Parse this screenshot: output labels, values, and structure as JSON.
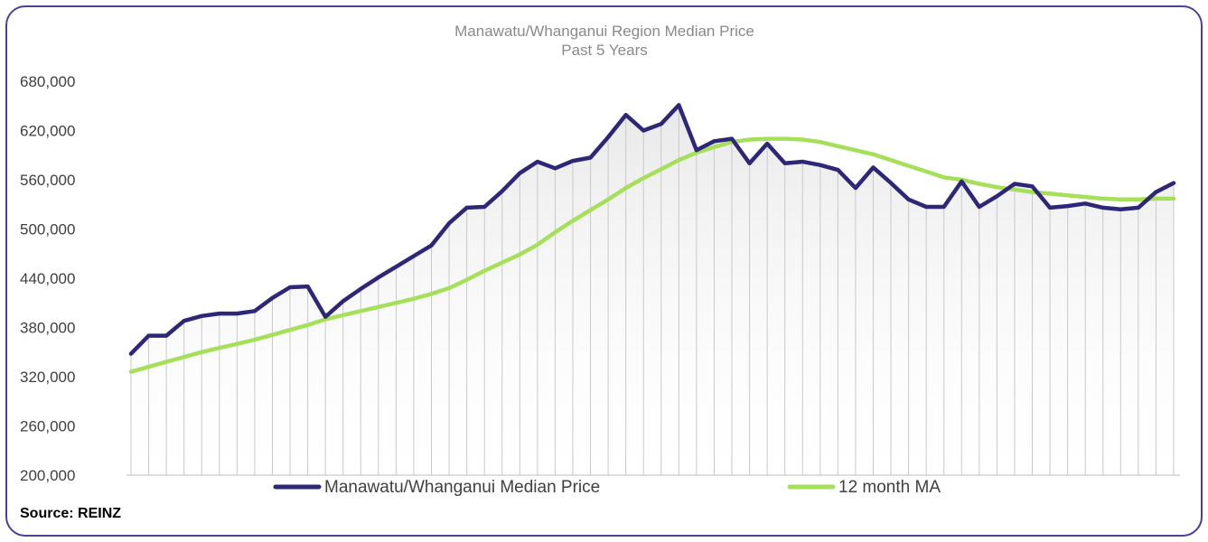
{
  "chart_data": {
    "type": "line",
    "title": "Manawatu/Whanganui Region Median Price",
    "subtitle": "Past 5 Years",
    "xlabel": "",
    "ylabel": "",
    "ylim": [
      200000,
      680000
    ],
    "y_ticks": [
      "680,000",
      "620,000",
      "560,000",
      "500,000",
      "440,000",
      "380,000",
      "320,000",
      "260,000",
      "200,000"
    ],
    "y_tick_values": [
      680000,
      620000,
      560000,
      500000,
      440000,
      380000,
      320000,
      260000,
      200000
    ],
    "grid": "vertical drop lines at each month",
    "legend_position": "bottom",
    "series": [
      {
        "name": "Manawatu/Whanganui Median Price",
        "color": "#2e2677",
        "values": [
          348000,
          370000,
          370000,
          388000,
          394000,
          397000,
          397000,
          400000,
          416000,
          429000,
          430000,
          393000,
          412000,
          427000,
          441000,
          454000,
          467000,
          480000,
          507000,
          526000,
          527000,
          546000,
          568000,
          582000,
          574000,
          583000,
          587000,
          612000,
          639000,
          620000,
          628000,
          651000,
          596000,
          607000,
          610000,
          580000,
          604000,
          580000,
          582000,
          578000,
          572000,
          550000,
          575000,
          556000,
          536000,
          527000,
          527000,
          558000,
          527000,
          540000,
          555000,
          552000,
          526000,
          528000,
          531000,
          526000,
          524000,
          526000,
          545000,
          556000
        ]
      },
      {
        "name": "12 month MA",
        "color": "#a6e05a",
        "values": [
          326000,
          332000,
          338000,
          344000,
          350000,
          355000,
          360000,
          365000,
          371000,
          377000,
          383000,
          390000,
          395000,
          400000,
          405000,
          410000,
          415000,
          421000,
          428000,
          438000,
          449000,
          459000,
          469000,
          481000,
          496000,
          510000,
          523000,
          536000,
          550000,
          562000,
          573000,
          584000,
          593000,
          600000,
          606000,
          609000,
          610000,
          610000,
          609000,
          606000,
          601000,
          596000,
          591000,
          584000,
          577000,
          570000,
          563000,
          560000,
          555000,
          551000,
          548000,
          545000,
          543000,
          541000,
          539000,
          537000,
          536000,
          536000,
          537000,
          537000
        ]
      }
    ],
    "line_color_grid": "#c9c9c9",
    "fill_color": "#f1f1f1"
  },
  "source": "Source: REINZ"
}
